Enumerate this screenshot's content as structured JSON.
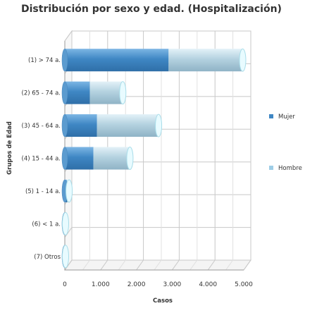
{
  "chart_data": {
    "type": "bar",
    "orientation": "horizontal",
    "stacked": true,
    "three_d": true,
    "title": "Distribución por sexo y edad. (Hospitalización)",
    "xlabel": "Casos",
    "ylabel": "Grupos de Edad",
    "xlim": [
      0,
      5000
    ],
    "x_ticks": [
      "0",
      "1.000",
      "2.000",
      "3.000",
      "4.000",
      "5.000"
    ],
    "x_tick_values": [
      0,
      1000,
      2000,
      3000,
      4000,
      5000
    ],
    "categories": [
      "(1) > 74 a.",
      "(2) 65 - 74 a.",
      "(3) 45 - 64 a.",
      "(4) 15 - 44 a.",
      "(5) 1 - 14 a.",
      "(6) < 1 a.",
      "(7) Otros"
    ],
    "series": [
      {
        "name": "Mujer",
        "color": "#3f87c4",
        "values": [
          2900,
          700,
          900,
          800,
          60,
          0,
          0
        ]
      },
      {
        "name": "Hombre",
        "color": "#9ecde6",
        "values": [
          2050,
          900,
          1700,
          1000,
          40,
          0,
          0
        ]
      }
    ],
    "grid": true,
    "legend_position": "right"
  }
}
